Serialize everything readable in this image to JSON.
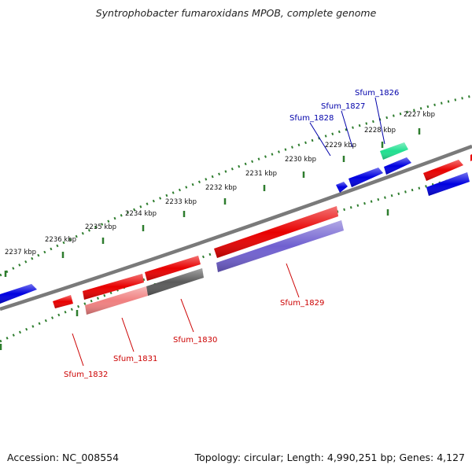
{
  "title": "Syntrophobacter fumaroxidans MPOB, complete genome",
  "footer": {
    "accession": "Accession: NC_008554",
    "topology": "Topology: circular; Length: 4,990,251 bp; Genes: 4,127"
  },
  "colors": {
    "backbone": "#808080",
    "tick_ring": "#2e7d2e",
    "forward_label": "#0000aa",
    "reverse_label": "#cc0000",
    "cds": "#e80000",
    "cds_light": "#f08080",
    "protein_blue": "#0000e0",
    "purple": "#7060d0",
    "gray": "#5a5a5a",
    "teal": "#20e090"
  },
  "scale": {
    "unit": "kbp",
    "ticks": [
      {
        "label": "2227 kbp"
      },
      {
        "label": "2228 kbp"
      },
      {
        "label": "2229 kbp"
      },
      {
        "label": "2230 kbp"
      },
      {
        "label": "2231 kbp"
      },
      {
        "label": "2232 kbp"
      },
      {
        "label": "2233 kbp"
      },
      {
        "label": "2234 kbp"
      },
      {
        "label": "2235 kbp"
      },
      {
        "label": "2236 kbp"
      },
      {
        "label": "2237 kbp"
      }
    ]
  },
  "gene_labels": [
    {
      "name": "Sfum_1826",
      "strand": "forward"
    },
    {
      "name": "Sfum_1827",
      "strand": "forward"
    },
    {
      "name": "Sfum_1828",
      "strand": "forward"
    },
    {
      "name": "Sfum_1829",
      "strand": "reverse"
    },
    {
      "name": "Sfum_1830",
      "strand": "reverse"
    },
    {
      "name": "Sfum_1831",
      "strand": "reverse"
    },
    {
      "name": "Sfum_1832",
      "strand": "reverse"
    }
  ]
}
